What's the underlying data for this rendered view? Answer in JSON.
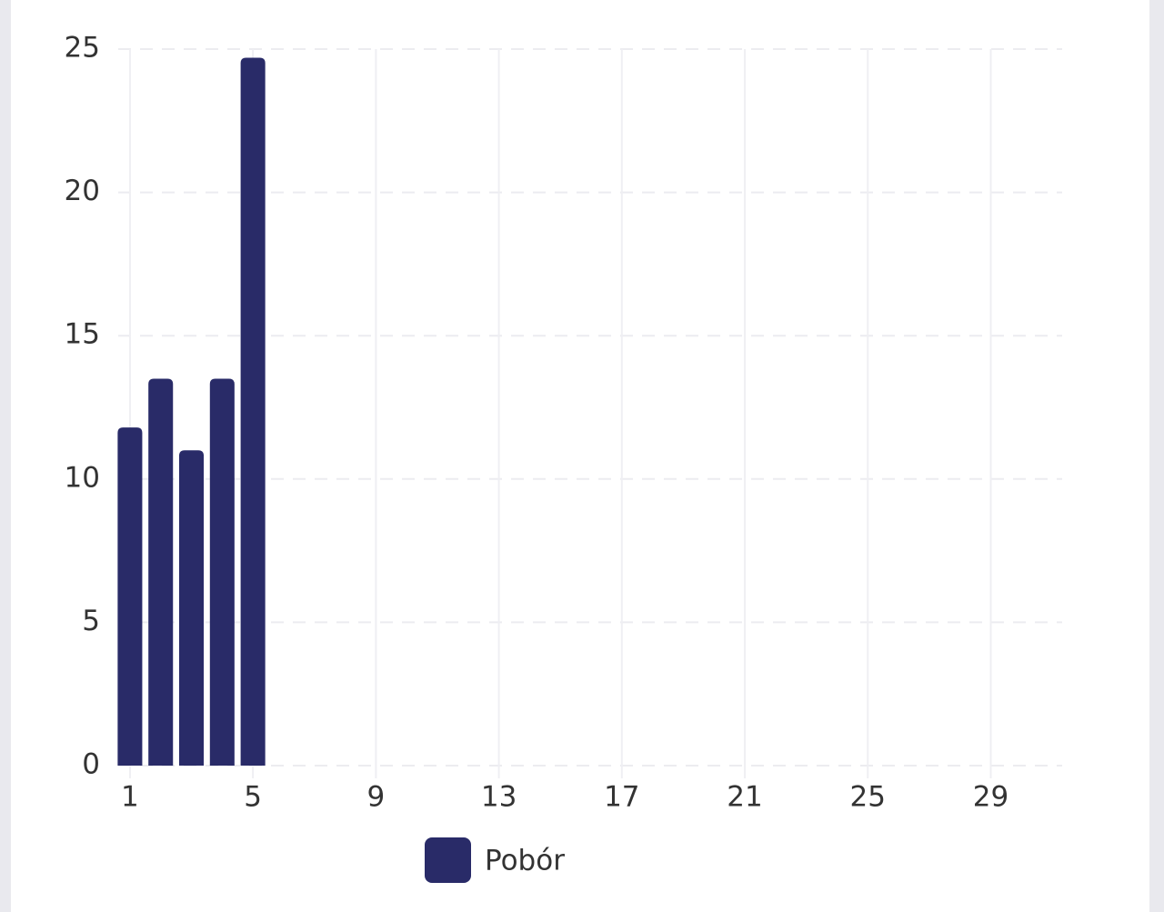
{
  "chart_data": {
    "type": "bar",
    "x": [
      1,
      2,
      3,
      4,
      5
    ],
    "series": [
      {
        "name": "Pobór",
        "color": "#292b68",
        "values": [
          11.8,
          13.5,
          11,
          13.5,
          24.7
        ]
      }
    ],
    "xlim": [
      0.5,
      31.5
    ],
    "xticks": [
      1,
      5,
      9,
      13,
      17,
      21,
      25,
      29
    ],
    "ylim": [
      0,
      25
    ],
    "yticks": [
      0,
      5,
      10,
      15,
      20,
      25
    ],
    "grid": true,
    "legend": "bottom"
  }
}
